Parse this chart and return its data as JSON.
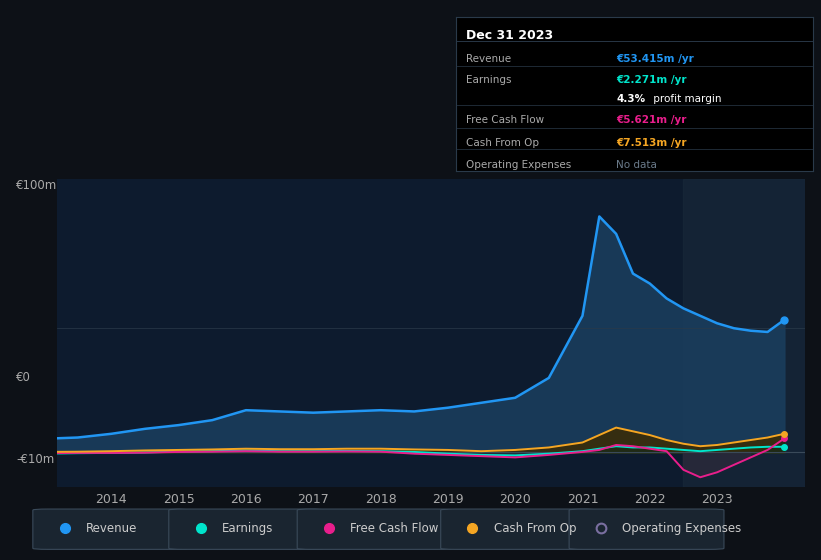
{
  "bg_color": "#0d1117",
  "plot_bg_color": "#0d1b2e",
  "years": [
    2013.0,
    2013.5,
    2014.0,
    2014.5,
    2015.0,
    2015.5,
    2016.0,
    2016.5,
    2017.0,
    2017.5,
    2018.0,
    2018.5,
    2019.0,
    2019.5,
    2020.0,
    2020.5,
    2021.0,
    2021.25,
    2021.5,
    2021.75,
    2022.0,
    2022.25,
    2022.5,
    2022.75,
    2023.0,
    2023.25,
    2023.5,
    2023.75,
    2024.0
  ],
  "revenue": [
    5.5,
    6.0,
    7.5,
    9.5,
    11.0,
    13.0,
    17.0,
    16.5,
    16.0,
    16.5,
    17.0,
    16.5,
    18.0,
    20.0,
    22.0,
    30.0,
    55.0,
    95.0,
    88.0,
    72.0,
    68.0,
    62.0,
    58.0,
    55.0,
    52.0,
    50.0,
    49.0,
    48.5,
    53.415
  ],
  "earnings": [
    -0.5,
    -0.3,
    -0.2,
    0.0,
    0.3,
    0.5,
    0.8,
    0.5,
    0.5,
    0.6,
    0.5,
    0.2,
    -0.5,
    -1.0,
    -1.2,
    -0.5,
    0.5,
    1.5,
    2.5,
    2.0,
    2.0,
    1.5,
    1.0,
    0.5,
    1.0,
    1.5,
    2.0,
    2.271,
    2.271
  ],
  "free_cash_flow": [
    -0.3,
    -0.2,
    -0.2,
    -0.1,
    0.2,
    0.3,
    0.5,
    0.3,
    0.3,
    0.4,
    0.3,
    -0.5,
    -1.0,
    -1.5,
    -2.0,
    -1.0,
    0.2,
    1.0,
    3.0,
    2.5,
    1.5,
    0.5,
    -7.0,
    -10.0,
    -8.0,
    -5.0,
    -2.0,
    1.0,
    5.621
  ],
  "cash_from_op": [
    0.2,
    0.3,
    0.5,
    0.8,
    1.0,
    1.2,
    1.5,
    1.3,
    1.3,
    1.5,
    1.5,
    1.2,
    1.0,
    0.5,
    1.0,
    2.0,
    4.0,
    7.0,
    10.0,
    8.5,
    7.0,
    5.0,
    3.5,
    2.5,
    3.0,
    4.0,
    5.0,
    6.0,
    7.513
  ],
  "revenue_color": "#2196f3",
  "revenue_fill_color": "#1a3d5c",
  "earnings_color": "#00e5cc",
  "earnings_fill_color": "#003a33",
  "free_cash_flow_color": "#e91e8c",
  "cash_from_op_color": "#f5a623",
  "cash_from_op_fill_color": "#3d2a00",
  "operating_exp_color": "#7a6fa0",
  "highlight_start": 2022.5,
  "highlight_end": 2024.3,
  "highlight_color": "#1a2a3a",
  "ylim_min": -14,
  "ylim_max": 110,
  "xlim_min": 2013.2,
  "xlim_max": 2024.3,
  "y_zero_line_color": "#3a4a5a",
  "y_label_100m": "€100m",
  "y_label_0": "€0",
  "y_label_neg10m": "-€10m",
  "xticks": [
    2014,
    2015,
    2016,
    2017,
    2018,
    2019,
    2020,
    2021,
    2022,
    2023
  ],
  "xtick_labels": [
    "2014",
    "2015",
    "2016",
    "2017",
    "2018",
    "2019",
    "2020",
    "2021",
    "2022",
    "2023"
  ],
  "info_box": {
    "title": "Dec 31 2023",
    "title_color": "#ffffff",
    "bg_color": "#000000",
    "border_color": "#2a3a4a",
    "rows": [
      {
        "label": "Revenue",
        "value": "€53.415m /yr",
        "value_color": "#2196f3",
        "is_margin": false
      },
      {
        "label": "Earnings",
        "value": "€2.271m /yr",
        "value_color": "#00e5cc",
        "is_margin": false
      },
      {
        "label": "",
        "value": "4.3% profit margin",
        "value_color": "#ffffff",
        "is_margin": true
      },
      {
        "label": "Free Cash Flow",
        "value": "€5.621m /yr",
        "value_color": "#e91e8c",
        "is_margin": false
      },
      {
        "label": "Cash From Op",
        "value": "€7.513m /yr",
        "value_color": "#f5a623",
        "is_margin": false
      },
      {
        "label": "Operating Expenses",
        "value": "No data",
        "value_color": "#6a7a8a",
        "is_margin": false
      }
    ],
    "label_color": "#aaaaaa"
  },
  "legend_items": [
    {
      "label": "Revenue",
      "color": "#2196f3",
      "filled": true
    },
    {
      "label": "Earnings",
      "color": "#00e5cc",
      "filled": true
    },
    {
      "label": "Free Cash Flow",
      "color": "#e91e8c",
      "filled": true
    },
    {
      "label": "Cash From Op",
      "color": "#f5a623",
      "filled": true
    },
    {
      "label": "Operating Expenses",
      "color": "#7a6fa0",
      "filled": false
    }
  ]
}
